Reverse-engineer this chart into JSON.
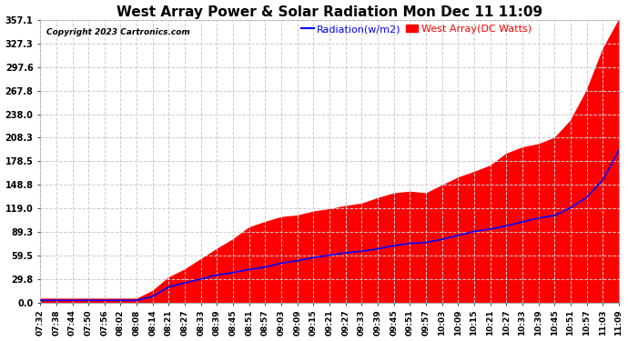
{
  "title": "West Array Power & Solar Radiation Mon Dec 11 11:09",
  "copyright": "Copyright 2023 Cartronics.com",
  "legend_radiation": "Radiation(w/m2)",
  "legend_west": "West Array(DC Watts)",
  "radiation_color": "blue",
  "west_color": "red",
  "background_color": "#ffffff",
  "plot_bg_color": "#ffffff",
  "grid_color": "#cccccc",
  "yticks": [
    0.0,
    29.8,
    59.5,
    89.3,
    119.0,
    148.8,
    178.5,
    208.3,
    238.0,
    267.8,
    297.6,
    327.3,
    357.1
  ],
  "ymax": 357.1,
  "xtick_labels": [
    "07:32",
    "07:38",
    "07:44",
    "07:50",
    "07:56",
    "08:02",
    "08:08",
    "08:14",
    "08:21",
    "08:27",
    "08:33",
    "08:39",
    "08:45",
    "08:51",
    "08:57",
    "09:03",
    "09:09",
    "09:15",
    "09:21",
    "09:27",
    "09:33",
    "09:39",
    "09:45",
    "09:51",
    "09:57",
    "10:03",
    "10:09",
    "10:15",
    "10:21",
    "10:27",
    "10:33",
    "10:39",
    "10:45",
    "10:51",
    "10:57",
    "11:03",
    "11:09"
  ],
  "west_data": [
    5,
    5,
    5,
    5,
    5,
    5,
    5,
    15,
    32,
    42,
    55,
    68,
    80,
    95,
    102,
    108,
    110,
    115,
    118,
    122,
    125,
    132,
    138,
    140,
    138,
    148,
    158,
    165,
    173,
    188,
    196,
    200,
    208,
    230,
    268,
    320,
    357
  ],
  "radiation_data": [
    3,
    3,
    3,
    3,
    3,
    3,
    3,
    8,
    20,
    25,
    30,
    35,
    38,
    42,
    45,
    50,
    53,
    57,
    60,
    63,
    65,
    68,
    72,
    75,
    76,
    80,
    85,
    90,
    93,
    97,
    102,
    107,
    110,
    120,
    133,
    155,
    192
  ],
  "title_fontsize": 11,
  "copyright_fontsize": 6.5,
  "legend_fontsize": 8,
  "tick_fontsize": 7,
  "xtick_fontsize": 6.5
}
